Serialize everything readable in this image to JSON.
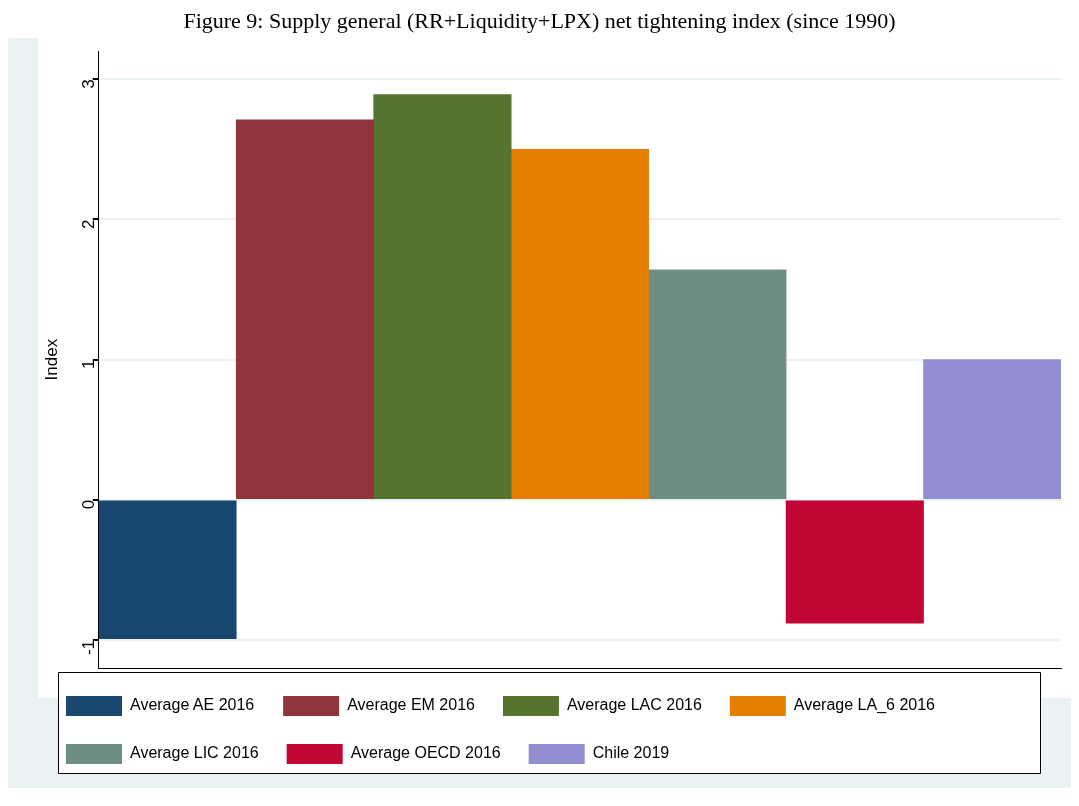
{
  "chart_data": {
    "type": "bar",
    "title": "Figure 9: Supply general (RR+Liquidity+LPX) net tightening index (since 1990)",
    "ylabel": "Index",
    "categories": [
      null,
      null,
      null,
      null,
      null,
      null,
      null
    ],
    "series": [
      {
        "name": "Average AE 2016",
        "color": "#1a476f",
        "values": [
          -0.99,
          null,
          null,
          null,
          null,
          null,
          null
        ]
      },
      {
        "name": "Average EM 2016",
        "color": "#90353b",
        "values": [
          null,
          2.71,
          null,
          null,
          null,
          null,
          null
        ]
      },
      {
        "name": "Average LAC 2016",
        "color": "#55752f",
        "values": [
          null,
          null,
          2.89,
          null,
          null,
          null,
          null
        ]
      },
      {
        "name": "Average LA_6 2016",
        "color": "#e37e00",
        "values": [
          null,
          null,
          null,
          2.5,
          null,
          null,
          null
        ]
      },
      {
        "name": "Average LIC 2016",
        "color": "#6e8e84",
        "values": [
          null,
          null,
          null,
          null,
          1.64,
          null,
          null
        ]
      },
      {
        "name": "Average OECD 2016",
        "color": "#c10534",
        "values": [
          null,
          null,
          null,
          null,
          null,
          -0.88,
          null
        ]
      },
      {
        "name": "Chile 2019",
        "color": "#938dd2",
        "values": [
          null,
          null,
          null,
          null,
          null,
          null,
          1.0
        ]
      }
    ],
    "ylim": [
      -1.2,
      3.2
    ],
    "yticks": [
      -1,
      0,
      1,
      2,
      3
    ],
    "grid": "y",
    "legend": "bottom"
  }
}
